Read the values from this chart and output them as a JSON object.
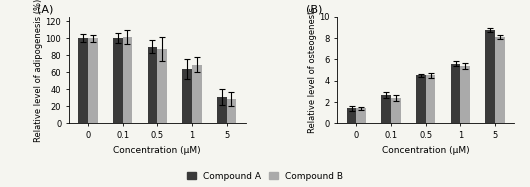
{
  "panel_A": {
    "title": "(A)",
    "ylabel": "Relative level of adipogenesis (%)",
    "xlabel": "Concentration (μM)",
    "xtick_labels": [
      "0",
      "0.1",
      "0.5",
      "1",
      "5"
    ],
    "compound_A_values": [
      100,
      100,
      90,
      64,
      31
    ],
    "compound_B_values": [
      100,
      101,
      87,
      69,
      29
    ],
    "compound_A_errors": [
      5,
      6,
      8,
      12,
      9
    ],
    "compound_B_errors": [
      4,
      8,
      14,
      9,
      8
    ],
    "ylim": [
      0,
      125
    ],
    "yticks": [
      0,
      20,
      40,
      60,
      80,
      100,
      120
    ]
  },
  "panel_B": {
    "title": "(B)",
    "ylabel": "Relative level of osteogenesis",
    "xlabel": "Concentration (μM)",
    "xtick_labels": [
      "0",
      "0.1",
      "0.5",
      "1",
      "5"
    ],
    "compound_A_values": [
      1.4,
      2.65,
      4.5,
      5.6,
      8.8
    ],
    "compound_B_values": [
      1.4,
      2.35,
      4.5,
      5.35,
      8.1
    ],
    "compound_A_errors": [
      0.28,
      0.28,
      0.18,
      0.22,
      0.18
    ],
    "compound_B_errors": [
      0.18,
      0.28,
      0.22,
      0.28,
      0.22
    ],
    "ylim": [
      0,
      10
    ],
    "yticks": [
      0,
      2,
      4,
      6,
      8,
      10
    ]
  },
  "color_A": "#3a3a3a",
  "color_B": "#aaaaaa",
  "bar_width": 0.28,
  "legend_labels": [
    "Compound A",
    "Compound B"
  ],
  "figure_size": [
    5.3,
    1.87
  ],
  "dpi": 100,
  "bg_color": "#f5f5f0"
}
